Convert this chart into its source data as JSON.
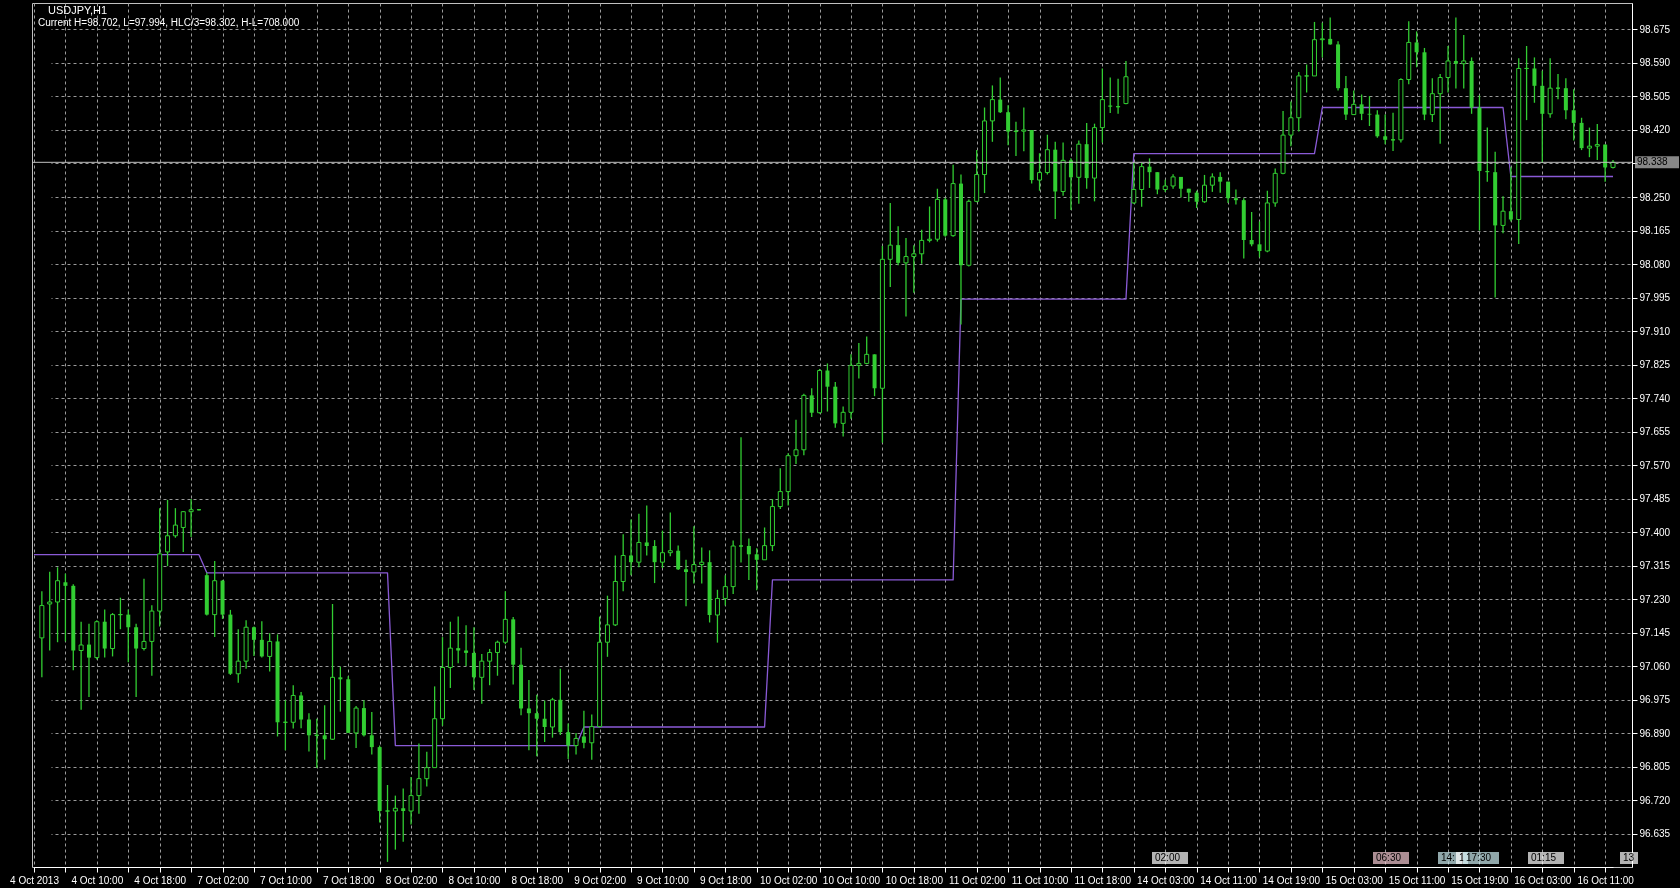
{
  "chart_data": {
    "type": "candlestick",
    "title": "USDJPY,H1",
    "subtitle": "Current H=98.702, L=97.994, HLC/3=98.302, H-L=708.000",
    "color": "#32cd32",
    "categories": [
      "4 Oct 2013",
      null,
      null,
      null,
      null,
      null,
      null,
      null,
      "4 Oct 10:00",
      null,
      null,
      null,
      null,
      null,
      null,
      null,
      "4 Oct 18:00",
      null,
      null,
      null,
      null,
      null,
      null,
      null,
      "7 Oct 02:00",
      null,
      null,
      null,
      null,
      null,
      null,
      null,
      "7 Oct 10:00",
      null,
      null,
      null,
      null,
      null,
      null,
      null,
      "7 Oct 18:00",
      null,
      null,
      null,
      null,
      null,
      null,
      null,
      "8 Oct 02:00",
      null,
      null,
      null,
      null,
      null,
      null,
      null,
      "8 Oct 10:00",
      null,
      null,
      null,
      null,
      null,
      null,
      null,
      "8 Oct 18:00",
      null,
      null,
      null,
      null,
      null,
      null,
      null,
      "9 Oct 02:00",
      null,
      null,
      null,
      null,
      null,
      null,
      null,
      "9 Oct 10:00",
      null,
      null,
      null,
      null,
      null,
      null,
      null,
      "9 Oct 18:00",
      null,
      null,
      null,
      null,
      null,
      null,
      null,
      "10 Oct 02:00",
      null,
      null,
      null,
      null,
      null,
      null,
      null,
      "10 Oct 10:00",
      null,
      null,
      null,
      null,
      null,
      null,
      null,
      "10 Oct 18:00",
      null,
      null,
      null,
      null,
      null,
      null,
      null,
      "11 Oct 02:00",
      null,
      null,
      null,
      null,
      null,
      null,
      null,
      "11 Oct 10:00",
      null,
      null,
      null,
      null,
      null,
      null,
      null,
      "11 Oct 18:00",
      null,
      null,
      null,
      null,
      null,
      null,
      null,
      "14 Oct 03:00",
      null,
      null,
      null,
      null,
      null,
      null,
      null,
      "14 Oct 11:00",
      null,
      null,
      null,
      null,
      null,
      null,
      null,
      "14 Oct 19:00",
      null,
      null,
      null,
      null,
      null,
      null,
      null,
      "15 Oct 03:00",
      null,
      null,
      null,
      null,
      null,
      null,
      null,
      "15 Oct 11:00",
      null,
      null,
      null,
      null,
      null,
      null,
      null,
      "15 Oct 19:00",
      null,
      null,
      null,
      null,
      null,
      null,
      null,
      "16 Oct 03:00",
      null,
      null,
      null,
      null,
      null,
      null,
      null,
      "16 Oct 11:00",
      null
    ],
    "ohlc": [
      null,
      [
        97.132,
        97.25,
        97.032,
        97.214
      ],
      [
        97.218,
        97.3,
        97.1,
        97.223
      ],
      [
        97.223,
        97.311,
        97.121,
        97.277
      ],
      [
        97.273,
        97.295,
        97.123,
        97.264
      ],
      [
        97.264,
        97.268,
        97.05,
        97.1
      ],
      [
        97.1,
        97.173,
        96.95,
        97.114
      ],
      [
        97.115,
        97.168,
        96.982,
        97.082
      ],
      [
        97.082,
        97.177,
        97.077,
        97.173
      ],
      [
        97.173,
        97.204,
        97.082,
        97.105
      ],
      [
        97.105,
        97.195,
        97.085,
        97.191
      ],
      [
        97.191,
        97.234,
        97.154,
        97.191
      ],
      [
        97.191,
        97.204,
        97.07,
        97.159
      ],
      [
        97.159,
        97.168,
        96.982,
        97.105
      ],
      [
        97.105,
        97.282,
        97.1,
        97.123
      ],
      [
        97.123,
        97.215,
        97.036,
        97.2
      ],
      [
        97.2,
        97.461,
        97.161,
        97.345
      ],
      [
        97.35,
        97.482,
        97.314,
        97.391
      ],
      [
        97.391,
        97.461,
        97.386,
        97.418
      ],
      [
        97.412,
        97.454,
        97.35,
        97.452
      ],
      [
        97.452,
        97.484,
        97.388,
        97.457
      ],
      [
        97.457,
        97.459,
        97.455,
        97.457
      ],
      [
        97.291,
        97.297,
        97.189,
        97.191
      ],
      [
        97.191,
        97.327,
        97.134,
        97.277
      ],
      [
        97.277,
        97.279,
        97.18,
        97.191
      ],
      [
        97.191,
        97.203,
        97.038,
        97.041
      ],
      [
        97.041,
        97.154,
        97.018,
        97.073
      ],
      [
        97.073,
        97.177,
        97.054,
        97.159
      ],
      [
        97.159,
        97.161,
        97.086,
        97.127
      ],
      [
        97.127,
        97.174,
        97.082,
        97.085
      ],
      [
        97.085,
        97.144,
        97.047,
        97.123
      ],
      [
        97.123,
        97.141,
        96.882,
        96.918
      ],
      [
        96.918,
        96.974,
        96.847,
        96.918
      ],
      [
        96.918,
        97.012,
        96.902,
        96.986
      ],
      [
        96.986,
        96.995,
        96.903,
        96.925
      ],
      [
        96.925,
        96.941,
        96.844,
        96.885
      ],
      [
        96.885,
        96.927,
        96.802,
        96.885
      ],
      [
        96.885,
        96.961,
        96.823,
        96.875
      ],
      [
        96.875,
        97.218,
        96.873,
        97.032
      ],
      [
        97.032,
        97.059,
        96.945,
        97.027
      ],
      [
        97.027,
        97.035,
        96.891,
        96.891
      ],
      [
        96.891,
        96.959,
        96.853,
        96.954
      ],
      [
        96.954,
        96.974,
        96.882,
        96.885
      ],
      [
        96.885,
        96.944,
        96.836,
        96.855
      ],
      [
        96.855,
        96.859,
        96.664,
        96.693
      ],
      [
        96.693,
        96.759,
        96.564,
        96.693
      ],
      [
        96.693,
        96.732,
        96.595,
        96.7
      ],
      [
        96.7,
        96.75,
        96.615,
        96.693
      ],
      [
        96.693,
        96.779,
        96.659,
        96.732
      ],
      [
        96.732,
        96.864,
        96.686,
        96.775
      ],
      [
        96.775,
        96.843,
        96.755,
        96.803
      ],
      [
        96.803,
        97.009,
        96.802,
        96.927
      ],
      [
        96.927,
        97.134,
        96.909,
        97.057
      ],
      [
        97.057,
        97.173,
        97.005,
        97.106
      ],
      [
        97.106,
        97.186,
        97.068,
        97.1
      ],
      [
        97.1,
        97.164,
        97.061,
        97.094
      ],
      [
        97.094,
        97.159,
        97.0,
        97.032
      ],
      [
        97.032,
        97.091,
        96.965,
        97.073
      ],
      [
        97.073,
        97.104,
        97.012,
        97.095
      ],
      [
        97.095,
        97.125,
        97.036,
        97.121
      ],
      [
        97.121,
        97.25,
        97.116,
        97.179
      ],
      [
        97.179,
        97.185,
        97.014,
        97.064
      ],
      [
        97.064,
        97.107,
        96.936,
        96.953
      ],
      [
        96.953,
        97.025,
        96.847,
        96.941
      ],
      [
        96.941,
        96.988,
        96.832,
        96.927
      ],
      [
        96.927,
        96.973,
        96.868,
        96.906
      ],
      [
        96.906,
        96.98,
        96.879,
        96.975
      ],
      [
        96.975,
        97.054,
        96.886,
        96.893
      ],
      [
        96.893,
        96.915,
        96.825,
        96.859
      ],
      [
        96.859,
        96.891,
        96.836,
        96.877
      ],
      [
        96.882,
        96.947,
        96.852,
        96.866
      ],
      [
        96.866,
        96.938,
        96.823,
        96.907
      ],
      [
        96.907,
        97.186,
        96.905,
        97.121
      ],
      [
        97.121,
        97.239,
        97.084,
        97.165
      ],
      [
        97.165,
        97.341,
        97.162,
        97.275
      ],
      [
        97.275,
        97.395,
        97.25,
        97.341
      ],
      [
        97.341,
        97.432,
        97.291,
        97.324
      ],
      [
        97.324,
        97.447,
        97.311,
        97.374
      ],
      [
        97.374,
        97.468,
        97.341,
        97.365
      ],
      [
        97.365,
        97.38,
        97.271,
        97.324
      ],
      [
        97.324,
        97.404,
        97.309,
        97.348
      ],
      [
        97.348,
        97.45,
        97.339,
        97.353
      ],
      [
        97.353,
        97.366,
        97.304,
        97.306
      ],
      [
        97.306,
        97.33,
        97.212,
        97.299
      ],
      [
        97.299,
        97.415,
        97.27,
        97.318
      ],
      [
        97.318,
        97.361,
        97.27,
        97.324
      ],
      [
        97.324,
        97.354,
        97.171,
        97.19
      ],
      [
        97.19,
        97.254,
        97.12,
        97.232
      ],
      [
        97.232,
        97.291,
        97.214,
        97.262
      ],
      [
        97.262,
        97.379,
        97.243,
        97.365
      ],
      [
        97.365,
        97.641,
        97.323,
        97.365
      ],
      [
        97.365,
        97.384,
        97.279,
        97.344
      ],
      [
        97.344,
        97.359,
        97.253,
        97.33
      ],
      [
        97.33,
        97.412,
        97.33,
        97.366
      ],
      [
        97.366,
        97.484,
        97.352,
        97.465
      ],
      [
        97.465,
        97.562,
        97.459,
        97.503
      ],
      [
        97.503,
        97.6,
        97.468,
        97.594
      ],
      [
        97.594,
        97.685,
        97.573,
        97.609
      ],
      [
        97.609,
        97.751,
        97.595,
        97.747
      ],
      [
        97.747,
        97.765,
        97.692,
        97.703
      ],
      [
        97.703,
        97.814,
        97.701,
        97.81
      ],
      [
        97.81,
        97.828,
        97.706,
        97.769
      ],
      [
        97.769,
        97.781,
        97.665,
        97.676
      ],
      [
        97.676,
        97.719,
        97.643,
        97.704
      ],
      [
        97.704,
        97.851,
        97.688,
        97.823
      ],
      [
        97.823,
        97.88,
        97.79,
        97.828
      ],
      [
        97.828,
        97.896,
        97.826,
        97.851
      ],
      [
        97.851,
        97.851,
        97.745,
        97.765
      ],
      [
        97.765,
        98.126,
        97.627,
        98.092
      ],
      [
        98.092,
        98.235,
        98.022,
        98.128
      ],
      [
        98.128,
        98.176,
        98.077,
        98.083
      ],
      [
        98.083,
        98.146,
        97.947,
        98.099
      ],
      [
        98.099,
        98.128,
        98.007,
        98.106
      ],
      [
        98.106,
        98.167,
        98.081,
        98.14
      ],
      [
        98.14,
        98.226,
        98.135,
        98.143
      ],
      [
        98.143,
        98.271,
        98.137,
        98.244
      ],
      [
        98.244,
        98.248,
        98.149,
        98.152
      ],
      [
        98.152,
        98.332,
        98.149,
        98.284
      ],
      [
        98.284,
        98.307,
        97.927,
        98.077
      ],
      [
        98.077,
        98.244,
        98.074,
        98.239
      ],
      [
        98.239,
        98.369,
        98.237,
        98.307
      ],
      [
        98.307,
        98.477,
        98.26,
        98.443
      ],
      [
        98.443,
        98.533,
        98.39,
        98.497
      ],
      [
        98.497,
        98.553,
        98.463,
        98.465
      ],
      [
        98.465,
        98.483,
        98.381,
        98.416
      ],
      [
        98.416,
        98.441,
        98.354,
        98.417
      ],
      [
        98.417,
        98.477,
        98.366,
        98.42
      ],
      [
        98.42,
        98.42,
        98.284,
        98.293
      ],
      [
        98.293,
        98.361,
        98.266,
        98.312
      ],
      [
        98.312,
        98.408,
        98.307,
        98.37
      ],
      [
        98.37,
        98.39,
        98.194,
        98.264
      ],
      [
        98.264,
        98.388,
        98.253,
        98.343
      ],
      [
        98.343,
        98.348,
        98.217,
        98.3
      ],
      [
        98.3,
        98.393,
        98.233,
        98.384
      ],
      [
        98.384,
        98.438,
        98.271,
        98.298
      ],
      [
        98.298,
        98.436,
        98.239,
        98.426
      ],
      [
        98.426,
        98.576,
        98.388,
        98.497
      ],
      [
        98.482,
        98.553,
        98.463,
        98.479
      ],
      [
        98.479,
        98.55,
        98.461,
        98.479
      ],
      [
        98.487,
        98.595,
        98.485,
        98.555
      ],
      [
        98.235,
        98.336,
        98.233,
        98.269
      ],
      [
        98.269,
        98.336,
        98.225,
        98.327
      ],
      [
        98.327,
        98.348,
        98.273,
        98.313
      ],
      [
        98.313,
        98.313,
        98.257,
        98.269
      ],
      [
        98.269,
        98.294,
        98.263,
        98.278
      ],
      [
        98.278,
        98.308,
        98.271,
        98.301
      ],
      [
        98.301,
        98.301,
        98.249,
        98.271
      ],
      [
        98.271,
        98.271,
        98.238,
        98.261
      ],
      [
        98.261,
        98.266,
        98.222,
        98.238
      ],
      [
        98.238,
        98.306,
        98.235,
        98.28
      ],
      [
        98.28,
        98.31,
        98.263,
        98.301
      ],
      [
        98.301,
        98.313,
        98.261,
        98.289
      ],
      [
        98.289,
        98.289,
        98.235,
        98.247
      ],
      [
        98.247,
        98.269,
        98.231,
        98.242
      ],
      [
        98.242,
        98.247,
        98.094,
        98.141
      ],
      [
        98.141,
        98.212,
        98.125,
        98.13
      ],
      [
        98.13,
        98.188,
        98.097,
        98.113
      ],
      [
        98.113,
        98.266,
        98.11,
        98.235
      ],
      [
        98.235,
        98.322,
        98.225,
        98.31
      ],
      [
        98.31,
        98.468,
        98.308,
        98.407
      ],
      [
        98.407,
        98.492,
        98.379,
        98.451
      ],
      [
        98.451,
        98.567,
        98.416,
        98.557
      ],
      [
        98.557,
        98.586,
        98.515,
        98.557
      ],
      [
        98.557,
        98.694,
        98.557,
        98.649
      ],
      [
        98.649,
        98.692,
        98.604,
        98.651
      ],
      [
        98.651,
        98.705,
        98.636,
        98.637
      ],
      [
        98.637,
        98.645,
        98.52,
        98.526
      ],
      [
        98.526,
        98.557,
        98.445,
        98.459
      ],
      [
        98.459,
        98.52,
        98.459,
        98.485
      ],
      [
        98.485,
        98.51,
        98.445,
        98.461
      ],
      [
        98.461,
        98.506,
        98.43,
        98.459
      ],
      [
        98.459,
        98.47,
        98.4,
        98.404
      ],
      [
        98.404,
        98.459,
        98.384,
        98.395
      ],
      [
        98.395,
        98.464,
        98.367,
        98.395
      ],
      [
        98.395,
        98.551,
        98.388,
        98.548
      ],
      [
        98.548,
        98.696,
        98.536,
        98.642
      ],
      [
        98.642,
        98.67,
        98.579,
        98.617
      ],
      [
        98.617,
        98.628,
        98.445,
        98.459
      ],
      [
        98.459,
        98.551,
        98.44,
        98.512
      ],
      [
        98.512,
        98.562,
        98.385,
        98.553
      ],
      [
        98.553,
        98.633,
        98.515,
        98.595
      ],
      [
        98.595,
        98.705,
        98.525,
        98.588
      ],
      [
        98.588,
        98.661,
        98.525,
        98.595
      ],
      [
        98.595,
        98.604,
        98.461,
        98.477
      ],
      [
        98.477,
        98.508,
        98.165,
        98.316
      ],
      [
        98.316,
        98.426,
        98.289,
        98.313
      ],
      [
        98.313,
        98.365,
        97.995,
        98.178
      ],
      [
        98.178,
        98.252,
        98.158,
        98.214
      ],
      [
        98.214,
        98.327,
        98.188,
        98.193
      ],
      [
        98.193,
        98.602,
        98.131,
        98.576
      ],
      [
        98.576,
        98.633,
        98.445,
        98.576
      ],
      [
        98.576,
        98.604,
        98.489,
        98.532
      ],
      [
        98.532,
        98.57,
        98.336,
        98.461
      ],
      [
        98.461,
        98.602,
        98.451,
        98.526
      ],
      [
        98.526,
        98.562,
        98.498,
        98.526
      ],
      [
        98.526,
        98.551,
        98.447,
        98.47
      ],
      [
        98.47,
        98.523,
        98.393,
        98.438
      ],
      [
        98.438,
        98.451,
        98.369,
        98.374
      ],
      [
        98.374,
        98.426,
        98.351,
        98.379
      ],
      [
        98.379,
        98.435,
        98.344,
        98.383
      ],
      [
        98.383,
        98.383,
        98.289,
        98.325
      ],
      [
        98.325,
        98.344,
        98.322,
        98.338
      ]
    ],
    "series": [
      {
        "type": "line",
        "color": "#8a5ad6",
        "values": [
          97.343,
          97.343,
          97.343,
          97.343,
          97.343,
          97.343,
          97.343,
          97.343,
          97.343,
          97.343,
          97.343,
          97.343,
          97.343,
          97.343,
          97.343,
          97.343,
          97.343,
          97.343,
          97.343,
          97.343,
          97.343,
          97.343,
          97.297,
          97.297,
          97.297,
          97.297,
          97.297,
          97.297,
          97.297,
          97.297,
          97.297,
          97.297,
          97.297,
          97.297,
          97.297,
          97.297,
          97.297,
          97.297,
          97.297,
          97.297,
          97.297,
          97.297,
          97.297,
          97.297,
          97.297,
          97.297,
          96.859,
          96.859,
          96.859,
          96.859,
          96.859,
          96.859,
          96.859,
          96.859,
          96.859,
          96.859,
          96.859,
          96.859,
          96.859,
          96.859,
          96.859,
          96.859,
          96.859,
          96.859,
          96.859,
          96.859,
          96.859,
          96.859,
          96.859,
          96.859,
          96.906,
          96.906,
          96.906,
          96.906,
          96.906,
          96.906,
          96.906,
          96.906,
          96.906,
          96.906,
          96.906,
          96.906,
          96.906,
          96.906,
          96.906,
          96.906,
          96.906,
          96.906,
          96.906,
          96.906,
          96.906,
          96.906,
          96.906,
          96.906,
          97.279,
          97.279,
          97.279,
          97.279,
          97.279,
          97.279,
          97.279,
          97.279,
          97.279,
          97.279,
          97.279,
          97.279,
          97.279,
          97.279,
          97.279,
          97.279,
          97.279,
          97.279,
          97.279,
          97.279,
          97.279,
          97.279,
          97.279,
          97.279,
          97.991,
          97.991,
          97.991,
          97.991,
          97.991,
          97.991,
          97.991,
          97.991,
          97.991,
          97.991,
          97.991,
          97.991,
          97.991,
          97.991,
          97.991,
          97.991,
          97.991,
          97.991,
          97.991,
          97.991,
          97.991,
          97.991,
          98.36,
          98.36,
          98.36,
          98.36,
          98.36,
          98.36,
          98.36,
          98.36,
          98.36,
          98.36,
          98.36,
          98.36,
          98.36,
          98.36,
          98.36,
          98.36,
          98.36,
          98.36,
          98.36,
          98.36,
          98.36,
          98.36,
          98.36,
          98.36,
          98.477,
          98.477,
          98.477,
          98.477,
          98.477,
          98.477,
          98.477,
          98.477,
          98.477,
          98.477,
          98.477,
          98.477,
          98.477,
          98.477,
          98.477,
          98.477,
          98.477,
          98.477,
          98.477,
          98.477,
          98.477,
          98.477,
          98.477,
          98.477,
          98.302,
          98.302,
          98.302,
          98.302,
          98.302,
          98.302,
          98.302,
          98.302,
          98.302,
          98.302,
          98.302,
          98.302,
          98.302,
          98.302
        ]
      }
    ],
    "ylim": [
      96.551,
      98.742
    ],
    "yticks": [
      96.635,
      {
        "value": 96.72,
        "label": "96.720"
      },
      96.805,
      {
        "value": 96.89,
        "label": "96.890"
      },
      96.975,
      {
        "value": 97.06,
        "label": "97.060"
      },
      97.145,
      {
        "value": 97.23,
        "label": "97.230"
      },
      97.315,
      {
        "value": 97.4,
        "label": "97.400"
      },
      97.485,
      {
        "value": 97.57,
        "label": "97.570"
      },
      97.655,
      {
        "value": 97.74,
        "label": "97.740"
      },
      97.825,
      {
        "value": 97.91,
        "label": "97.910"
      },
      97.995,
      {
        "value": 98.08,
        "label": "98.080"
      },
      98.165,
      {
        "value": 98.25,
        "label": "98.250"
      },
      {
        "value": 98.335,
        "label": null
      },
      {
        "value": 98.42,
        "label": "98.420"
      },
      98.505,
      {
        "value": 98.59,
        "label": "98.590"
      },
      98.675
    ],
    "ref_lines": [
      {
        "axis": "y",
        "value": 98.338,
        "label": "98.338",
        "color": "#c0c0c0"
      }
    ],
    "annotations": [
      "02:00",
      "06:30",
      "14:",
      "1",
      "17:30",
      "01:15",
      "13"
    ],
    "grid": true
  }
}
